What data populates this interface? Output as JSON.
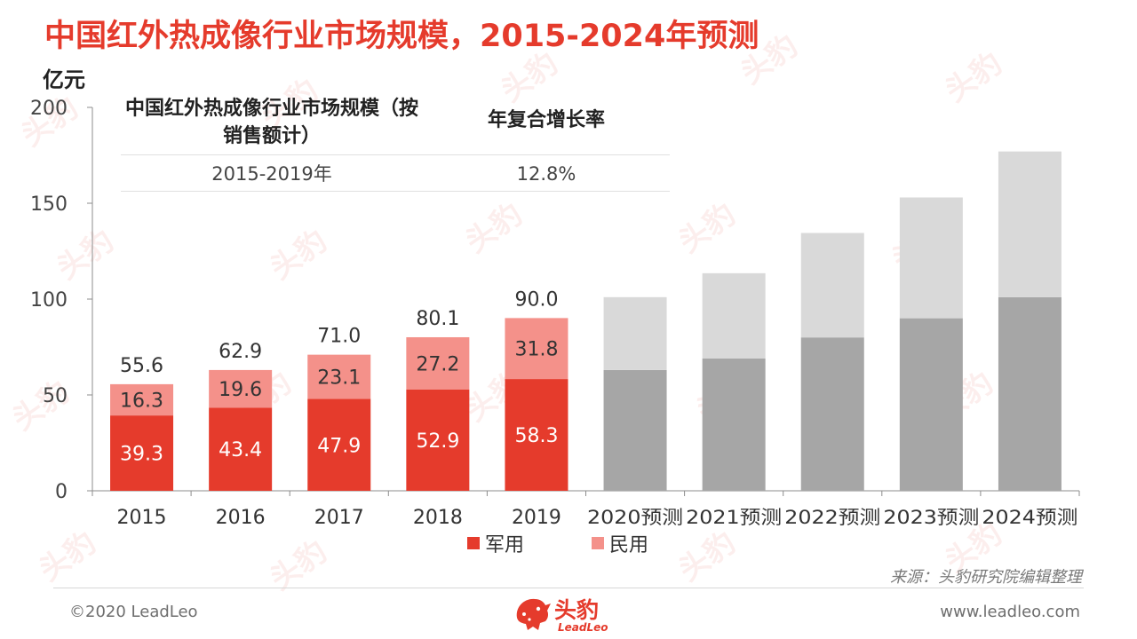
{
  "title": "中国红外热成像行业市场规模，2015-2024年预测",
  "unit": "亿元",
  "cagr_table": {
    "head_scope": "中国红外热成像行业市场规模（按销售额计）",
    "head_rate": "年复合增长率",
    "rows": [
      {
        "period": "2015-2019年",
        "rate": "12.8%"
      }
    ]
  },
  "chart_data": {
    "type": "bar",
    "stacked": true,
    "categories": [
      "2015",
      "2016",
      "2017",
      "2018",
      "2019",
      "2020预测",
      "2021预测",
      "2022预测",
      "2023预测",
      "2024预测"
    ],
    "ylim": [
      0,
      200
    ],
    "yticks": [
      0,
      50,
      100,
      150,
      200
    ],
    "series": [
      {
        "name": "军用",
        "color": "#e53b2c",
        "values": [
          39.3,
          43.4,
          47.9,
          52.9,
          58.3,
          63.0,
          69.0,
          80.0,
          90.0,
          101.0
        ],
        "labels": [
          "39.3",
          "43.4",
          "47.9",
          "52.9",
          "58.3",
          null,
          null,
          null,
          null,
          null
        ]
      },
      {
        "name": "民用",
        "color": "#f4918a",
        "values": [
          16.3,
          19.6,
          23.1,
          27.2,
          31.8,
          38.0,
          44.5,
          54.5,
          63.0,
          76.0
        ],
        "labels": [
          "16.3",
          "19.6",
          "23.1",
          "27.2",
          "31.8",
          null,
          null,
          null,
          null,
          null
        ]
      }
    ],
    "forecast_colors": {
      "lower": "#a6a6a6",
      "upper": "#d9d9d9"
    },
    "totals": [
      "55.6",
      "62.9",
      "71.0",
      "80.1",
      "90.0",
      null,
      null,
      null,
      null,
      null
    ],
    "legend": [
      {
        "name": "军用",
        "color": "#e53b2c"
      },
      {
        "name": "民用",
        "color": "#f4918a"
      }
    ]
  },
  "source": "来源：头豹研究院编辑整理",
  "footer": {
    "copyright": "©2020 LeadLeo",
    "website": "www.leadleo.com",
    "logo_text": "头豹",
    "logo_sub": "LeadLeo"
  },
  "watermark": {
    "text": "头豹",
    "sub": "LeadLeo"
  }
}
